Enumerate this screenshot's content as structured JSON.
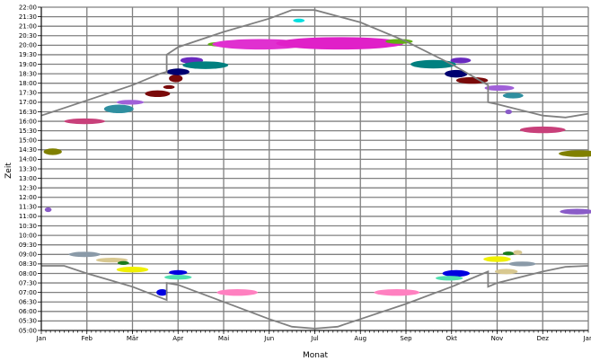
{
  "chart_data": {
    "type": "scatter",
    "title": "",
    "xlabel": "Monat",
    "ylabel": "Zeit",
    "x_ticks": [
      "Jan",
      "Feb",
      "Mär",
      "Apr",
      "Mai",
      "Jun",
      "Jul",
      "Aug",
      "Sep",
      "Okt",
      "Nov",
      "Dez",
      "Jan"
    ],
    "y_ticks": [
      "05:00",
      "05:30",
      "06:00",
      "06:30",
      "07:00",
      "07:30",
      "08:00",
      "08:30",
      "09:00",
      "09:30",
      "10:00",
      "10:30",
      "11:00",
      "11:30",
      "12:00",
      "12:30",
      "13:00",
      "13:30",
      "14:00",
      "14:30",
      "15:00",
      "15:30",
      "16:00",
      "16:30",
      "17:00",
      "17:30",
      "18:00",
      "18:30",
      "19:00",
      "19:30",
      "20:00",
      "20:30",
      "21:00",
      "21:30",
      "22:00"
    ],
    "xlim": [
      0,
      12
    ],
    "ylim": [
      "05:00",
      "22:00"
    ],
    "grid": true,
    "sunset_curve": [
      [
        0,
        16.3
      ],
      [
        1,
        17.1
      ],
      [
        2,
        17.9
      ],
      [
        2.6,
        18.5
      ],
      [
        2.75,
        18.6
      ],
      [
        2.75,
        19.5
      ],
      [
        3,
        19.9
      ],
      [
        4,
        20.7
      ],
      [
        5,
        21.4
      ],
      [
        5.5,
        21.85
      ],
      [
        6,
        21.85
      ],
      [
        7,
        21.2
      ],
      [
        8,
        20.2
      ],
      [
        9,
        19.0
      ],
      [
        9.8,
        17.9
      ],
      [
        9.8,
        17.0
      ],
      [
        10,
        16.9
      ],
      [
        11,
        16.3
      ],
      [
        11.5,
        16.2
      ],
      [
        12,
        16.4
      ]
    ],
    "sunrise_curve": [
      [
        0,
        8.4
      ],
      [
        0.5,
        8.4
      ],
      [
        1,
        8.0
      ],
      [
        2,
        7.3
      ],
      [
        2.75,
        6.6
      ],
      [
        2.75,
        7.5
      ],
      [
        3,
        7.4
      ],
      [
        4,
        6.5
      ],
      [
        5,
        5.6
      ],
      [
        5.5,
        5.2
      ],
      [
        6,
        5.1
      ],
      [
        6.5,
        5.2
      ],
      [
        7,
        5.6
      ],
      [
        8,
        6.4
      ],
      [
        9,
        7.3
      ],
      [
        9.8,
        8.1
      ],
      [
        9.8,
        7.3
      ],
      [
        10,
        7.5
      ],
      [
        11,
        8.1
      ],
      [
        11.5,
        8.35
      ],
      [
        12,
        8.4
      ]
    ],
    "observations": [
      {
        "x": 0.25,
        "y": 14.4,
        "w": 0.4,
        "h": 0.35,
        "color": "#808000"
      },
      {
        "x": 0.15,
        "y": 11.35,
        "w": 0.15,
        "h": 0.25,
        "color": "#8a5cc8"
      },
      {
        "x": 0.95,
        "y": 16.0,
        "w": 0.9,
        "h": 0.3,
        "color": "#c8407a"
      },
      {
        "x": 0.95,
        "y": 9.0,
        "w": 0.7,
        "h": 0.28,
        "color": "#8a9aa8"
      },
      {
        "x": 1.55,
        "y": 8.7,
        "w": 0.7,
        "h": 0.25,
        "color": "#d8c890"
      },
      {
        "x": 1.8,
        "y": 8.55,
        "w": 0.25,
        "h": 0.2,
        "color": "#1a7a1a"
      },
      {
        "x": 2.0,
        "y": 8.2,
        "w": 0.7,
        "h": 0.3,
        "color": "#f0f000"
      },
      {
        "x": 1.7,
        "y": 16.65,
        "w": 0.65,
        "h": 0.45,
        "color": "#2f8fa0"
      },
      {
        "x": 1.95,
        "y": 17.0,
        "w": 0.6,
        "h": 0.25,
        "color": "#a060d8"
      },
      {
        "x": 2.55,
        "y": 17.45,
        "w": 0.55,
        "h": 0.35,
        "color": "#7a0a0a"
      },
      {
        "x": 2.8,
        "y": 17.8,
        "w": 0.25,
        "h": 0.2,
        "color": "#7a0a0a"
      },
      {
        "x": 2.65,
        "y": 7.0,
        "w": 0.25,
        "h": 0.35,
        "color": "#0000e0"
      },
      {
        "x": 2.95,
        "y": 18.25,
        "w": 0.3,
        "h": 0.4,
        "color": "#7a0a0a"
      },
      {
        "x": 3.0,
        "y": 18.6,
        "w": 0.5,
        "h": 0.35,
        "color": "#000070"
      },
      {
        "x": 3.0,
        "y": 8.05,
        "w": 0.4,
        "h": 0.25,
        "color": "#0000e0"
      },
      {
        "x": 3.0,
        "y": 7.8,
        "w": 0.6,
        "h": 0.25,
        "color": "#50e0b0"
      },
      {
        "x": 3.3,
        "y": 19.2,
        "w": 0.5,
        "h": 0.35,
        "color": "#6a2ac0"
      },
      {
        "x": 3.6,
        "y": 18.95,
        "w": 1.0,
        "h": 0.4,
        "color": "#008080"
      },
      {
        "x": 3.95,
        "y": 20.05,
        "w": 0.6,
        "h": 0.25,
        "color": "#60b010"
      },
      {
        "x": 4.3,
        "y": 7.0,
        "w": 0.9,
        "h": 0.35,
        "color": "#ff80c0"
      },
      {
        "x": 4.8,
        "y": 20.05,
        "w": 2.1,
        "h": 0.55,
        "color": "#e030d0"
      },
      {
        "x": 5.65,
        "y": 21.3,
        "w": 0.25,
        "h": 0.2,
        "color": "#00e0e0"
      },
      {
        "x": 6.55,
        "y": 20.1,
        "w": 2.8,
        "h": 0.65,
        "color": "#e020c8"
      },
      {
        "x": 7.85,
        "y": 20.2,
        "w": 0.6,
        "h": 0.25,
        "color": "#60b010"
      },
      {
        "x": 7.8,
        "y": 7.0,
        "w": 1.0,
        "h": 0.35,
        "color": "#ff80c0"
      },
      {
        "x": 8.6,
        "y": 19.0,
        "w": 1.0,
        "h": 0.45,
        "color": "#008080"
      },
      {
        "x": 9.1,
        "y": 18.5,
        "w": 0.5,
        "h": 0.4,
        "color": "#000070"
      },
      {
        "x": 9.2,
        "y": 19.2,
        "w": 0.45,
        "h": 0.3,
        "color": "#6a2ac0"
      },
      {
        "x": 9.45,
        "y": 18.15,
        "w": 0.7,
        "h": 0.35,
        "color": "#7a0a0a"
      },
      {
        "x": 10.05,
        "y": 17.75,
        "w": 0.65,
        "h": 0.3,
        "color": "#a060d8"
      },
      {
        "x": 10.35,
        "y": 17.35,
        "w": 0.45,
        "h": 0.3,
        "color": "#2f8fa0"
      },
      {
        "x": 9.1,
        "y": 8.0,
        "w": 0.6,
        "h": 0.35,
        "color": "#0000e0"
      },
      {
        "x": 8.95,
        "y": 7.75,
        "w": 0.6,
        "h": 0.25,
        "color": "#50e0b0"
      },
      {
        "x": 10.0,
        "y": 8.75,
        "w": 0.6,
        "h": 0.3,
        "color": "#f0f000"
      },
      {
        "x": 10.25,
        "y": 9.05,
        "w": 0.25,
        "h": 0.2,
        "color": "#1a7a1a"
      },
      {
        "x": 10.45,
        "y": 9.1,
        "w": 0.2,
        "h": 0.25,
        "color": "#d8c890"
      },
      {
        "x": 10.2,
        "y": 8.1,
        "w": 0.5,
        "h": 0.28,
        "color": "#d8c890"
      },
      {
        "x": 10.55,
        "y": 8.5,
        "w": 0.6,
        "h": 0.25,
        "color": "#8a9aa8"
      },
      {
        "x": 10.25,
        "y": 16.5,
        "w": 0.15,
        "h": 0.25,
        "color": "#8a5cc8"
      },
      {
        "x": 11.0,
        "y": 15.55,
        "w": 1.0,
        "h": 0.35,
        "color": "#c8407a"
      },
      {
        "x": 11.8,
        "y": 14.3,
        "w": 0.9,
        "h": 0.35,
        "color": "#808000"
      },
      {
        "x": 11.75,
        "y": 11.25,
        "w": 0.75,
        "h": 0.3,
        "color": "#8a5cc8"
      }
    ],
    "colors": {
      "grid": "#808080",
      "curve": "#808080",
      "background": "#ffffff"
    }
  }
}
